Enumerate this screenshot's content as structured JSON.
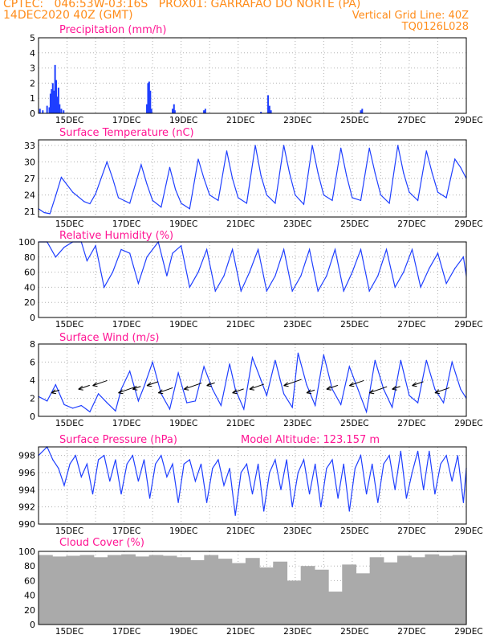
{
  "header": {
    "line1": "CPTEC:   046:53W-03:16S   PROX01: GARRAFAO DO NORTE (PA)",
    "line2_left": "14DEC2020 40Z (GMT)",
    "line2_right": "Vertical Grid Line: 40Z",
    "line3_right": "TQ0126L028",
    "color": "#ff8c1a"
  },
  "colors": {
    "title": "#ff1493",
    "series": "#1f3fff",
    "cloud": "#aaaaaa",
    "grid": "#b0b0b0"
  },
  "xaxis": {
    "labels": [
      "15DEC",
      "17DEC",
      "19DEC",
      "21DEC",
      "23DEC",
      "25DEC",
      "27DEC",
      "29DEC"
    ],
    "label_day": [
      15,
      17,
      19,
      21,
      23,
      25,
      27,
      29
    ],
    "range_days": [
      14.0,
      29.0
    ],
    "daily_gridlines": true
  },
  "chart_data": [
    {
      "type": "bar",
      "title": "Precipitation (mm/h)",
      "ylim": [
        0,
        5
      ],
      "yticks": [
        0,
        1,
        2,
        3,
        4,
        5
      ],
      "x": [
        14.05,
        14.15,
        14.3,
        14.38,
        14.42,
        14.46,
        14.5,
        14.54,
        14.58,
        14.62,
        14.66,
        14.7,
        14.74,
        14.8,
        14.88,
        17.8,
        17.84,
        17.88,
        17.92,
        17.96,
        18.7,
        18.75,
        18.78,
        19.8,
        19.85,
        21.8,
        22.05,
        22.1,
        22.15,
        25.3,
        25.35
      ],
      "values": [
        0.3,
        0.2,
        0.5,
        0.4,
        1.3,
        1.6,
        2.0,
        1.5,
        3.2,
        2.2,
        1.1,
        1.7,
        0.6,
        0.3,
        0.2,
        0.6,
        2.0,
        2.1,
        1.5,
        0.3,
        0.3,
        0.6,
        0.2,
        0.2,
        0.3,
        0.1,
        1.2,
        0.5,
        0.2,
        0.2,
        0.3
      ]
    },
    {
      "type": "line",
      "title": "Surface Temperature (nC)",
      "ylim": [
        20,
        34
      ],
      "yticks": [
        21,
        24,
        27,
        30,
        33
      ],
      "x": [
        14.0,
        14.2,
        14.4,
        14.6,
        14.8,
        15.2,
        15.6,
        15.8,
        16.0,
        16.4,
        16.6,
        16.8,
        17.2,
        17.6,
        17.8,
        18.0,
        18.3,
        18.6,
        18.8,
        19.0,
        19.3,
        19.6,
        19.8,
        20.0,
        20.3,
        20.6,
        20.8,
        21.0,
        21.3,
        21.6,
        21.8,
        22.0,
        22.3,
        22.6,
        22.8,
        23.0,
        23.3,
        23.6,
        23.8,
        24.0,
        24.3,
        24.6,
        24.8,
        25.0,
        25.3,
        25.6,
        25.8,
        26.0,
        26.3,
        26.6,
        26.8,
        27.0,
        27.3,
        27.6,
        27.8,
        28.0,
        28.3,
        28.6,
        28.8,
        29.0
      ],
      "values": [
        21.5,
        20.8,
        20.6,
        23.8,
        27.2,
        24.5,
        22.8,
        22.4,
        24.2,
        30.0,
        27.0,
        23.5,
        22.5,
        29.5,
        26.0,
        23.0,
        21.8,
        29.0,
        25.0,
        22.5,
        21.5,
        30.5,
        27.0,
        24.0,
        23.0,
        32.0,
        27.0,
        23.5,
        22.5,
        33.0,
        27.5,
        24.0,
        22.5,
        33.0,
        28.0,
        24.0,
        22.3,
        33.0,
        28.0,
        24.0,
        23.0,
        32.5,
        27.5,
        23.5,
        23.0,
        32.5,
        28.0,
        24.0,
        22.5,
        33.0,
        28.0,
        24.5,
        23.0,
        32.0,
        28.0,
        24.5,
        23.5,
        30.5,
        29.0,
        27.0
      ]
    },
    {
      "type": "line",
      "title": "Relative Humidity (%)",
      "ylim": [
        0,
        100
      ],
      "yticks": [
        0,
        20,
        40,
        60,
        80,
        100
      ],
      "x": [
        14.0,
        14.3,
        14.6,
        14.9,
        15.2,
        15.5,
        15.7,
        16.0,
        16.3,
        16.6,
        16.9,
        17.2,
        17.5,
        17.8,
        18.0,
        18.2,
        18.5,
        18.7,
        19.0,
        19.3,
        19.6,
        19.9,
        20.2,
        20.5,
        20.8,
        21.1,
        21.4,
        21.7,
        22.0,
        22.3,
        22.6,
        22.9,
        23.2,
        23.5,
        23.8,
        24.1,
        24.4,
        24.7,
        25.0,
        25.3,
        25.6,
        25.9,
        26.2,
        26.5,
        26.8,
        27.1,
        27.4,
        27.7,
        28.0,
        28.3,
        28.6,
        28.9,
        29.0
      ],
      "values": [
        100,
        100,
        80,
        93,
        100,
        100,
        75,
        95,
        40,
        60,
        90,
        85,
        45,
        80,
        90,
        100,
        55,
        85,
        95,
        40,
        60,
        90,
        35,
        55,
        90,
        35,
        60,
        90,
        35,
        55,
        90,
        35,
        55,
        90,
        35,
        55,
        90,
        35,
        60,
        90,
        35,
        55,
        90,
        40,
        60,
        90,
        40,
        65,
        85,
        45,
        65,
        80,
        55
      ]
    },
    {
      "type": "line",
      "title": "Surface Wind (m/s)",
      "ylim": [
        0,
        8
      ],
      "yticks": [
        0,
        2,
        4,
        6,
        8
      ],
      "x": [
        14.0,
        14.3,
        14.6,
        14.9,
        15.2,
        15.5,
        15.8,
        16.1,
        16.4,
        16.7,
        16.9,
        17.2,
        17.5,
        17.7,
        18.0,
        18.3,
        18.6,
        18.9,
        19.2,
        19.5,
        19.8,
        20.1,
        20.4,
        20.7,
        20.9,
        21.2,
        21.5,
        21.8,
        22.0,
        22.3,
        22.6,
        22.9,
        23.1,
        23.4,
        23.7,
        24.0,
        24.3,
        24.6,
        24.9,
        25.2,
        25.5,
        25.8,
        26.1,
        26.4,
        26.7,
        27.0,
        27.3,
        27.6,
        27.9,
        28.2,
        28.5,
        28.8,
        29.0
      ],
      "values": [
        2.2,
        1.7,
        3.5,
        1.3,
        0.9,
        1.2,
        0.5,
        2.5,
        1.5,
        0.6,
        3.0,
        5.0,
        1.7,
        3.3,
        6.0,
        2.5,
        0.8,
        4.8,
        1.5,
        1.7,
        5.5,
        3.0,
        1.2,
        5.8,
        3.0,
        0.8,
        6.5,
        4.0,
        2.3,
        6.2,
        2.5,
        1.0,
        7.0,
        3.5,
        1.2,
        6.8,
        3.0,
        1.3,
        5.5,
        3.0,
        0.5,
        6.2,
        3.0,
        1.0,
        6.2,
        2.3,
        1.5,
        6.2,
        3.0,
        1.5,
        6.0,
        3.0,
        2.0
      ],
      "annotation": "wind direction vectors"
    },
    {
      "type": "line",
      "title": "Surface Pressure (hPa)",
      "annotation": "Model Altitude: 123.157  m",
      "ylim": [
        990,
        999
      ],
      "yticks": [
        990,
        992,
        994,
        996,
        998
      ],
      "x": [
        14.0,
        14.3,
        14.5,
        14.7,
        14.9,
        15.1,
        15.3,
        15.5,
        15.7,
        15.9,
        16.1,
        16.3,
        16.5,
        16.7,
        16.9,
        17.1,
        17.3,
        17.5,
        17.7,
        17.9,
        18.1,
        18.3,
        18.5,
        18.7,
        18.9,
        19.1,
        19.3,
        19.5,
        19.7,
        19.9,
        20.1,
        20.3,
        20.5,
        20.7,
        20.9,
        21.1,
        21.3,
        21.5,
        21.7,
        21.9,
        22.1,
        22.3,
        22.5,
        22.7,
        22.9,
        23.1,
        23.3,
        23.5,
        23.7,
        23.9,
        24.1,
        24.3,
        24.5,
        24.7,
        24.9,
        25.1,
        25.3,
        25.5,
        25.7,
        25.9,
        26.1,
        26.3,
        26.5,
        26.7,
        26.9,
        27.1,
        27.3,
        27.5,
        27.7,
        27.9,
        28.1,
        28.3,
        28.5,
        28.7,
        28.9,
        29.0
      ],
      "values": [
        998,
        999,
        997.5,
        996.5,
        994.5,
        997,
        998,
        995.5,
        997,
        993.5,
        997.5,
        998,
        995,
        997.5,
        993.5,
        997,
        998,
        995,
        997.5,
        993,
        997,
        998,
        995.5,
        997,
        992.5,
        997,
        997.5,
        995,
        997,
        992.5,
        996.5,
        997.5,
        994.5,
        996.5,
        991,
        996,
        997,
        993.5,
        997,
        991.5,
        996,
        997.5,
        994,
        997.5,
        992,
        996,
        997.5,
        993.5,
        997,
        992,
        996.5,
        997.5,
        993,
        997,
        991.5,
        996.5,
        998,
        993.5,
        997,
        992.5,
        997,
        998,
        994,
        998.5,
        993,
        996,
        998.5,
        994,
        998.5,
        993.5,
        997,
        998,
        995,
        998,
        992.5,
        996.5
      ]
    },
    {
      "type": "bar",
      "title": "Cloud Cover (%)",
      "ylim": [
        0,
        100
      ],
      "yticks": [
        0,
        20,
        40,
        60,
        80,
        100
      ],
      "x": [
        14.0,
        14.5,
        15.0,
        15.5,
        16.0,
        16.5,
        17.0,
        17.5,
        18.0,
        18.5,
        19.0,
        19.5,
        20.0,
        20.5,
        21.0,
        21.5,
        22.0,
        22.5,
        23.0,
        23.5,
        24.0,
        24.5,
        25.0,
        25.5,
        26.0,
        26.5,
        27.0,
        27.5,
        28.0,
        28.5,
        29.0
      ],
      "values": [
        95,
        93,
        94,
        95,
        92,
        95,
        96,
        93,
        95,
        94,
        92,
        88,
        95,
        90,
        84,
        91,
        78,
        86,
        60,
        80,
        75,
        45,
        82,
        70,
        92,
        85,
        94,
        92,
        96,
        94,
        95
      ]
    }
  ]
}
